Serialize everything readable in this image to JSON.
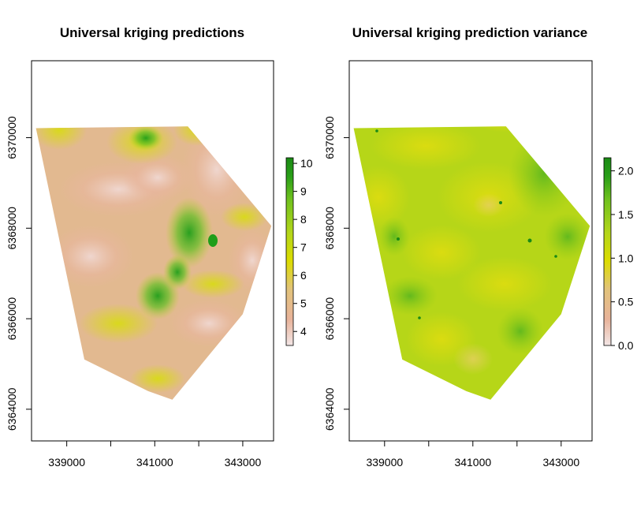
{
  "chart_data": [
    {
      "type": "heatmap",
      "title": "Universal kriging predictions",
      "xlabel": "",
      "ylabel": "",
      "xlim": [
        338200,
        343700
      ],
      "ylim": [
        6363300,
        6371700
      ],
      "x_ticks": [
        339000,
        341000,
        343000
      ],
      "x_ticks_minor": [
        340000,
        342000
      ],
      "x_tick_labels": [
        "339000",
        "341000",
        "343000"
      ],
      "y_ticks": [
        6364000,
        6366000,
        6368000,
        6370000
      ],
      "y_tick_labels": [
        "6364000",
        "6366000",
        "6368000",
        "6370000"
      ],
      "colorbar": {
        "range": [
          3.5,
          10.2
        ],
        "ticks": [
          4,
          5,
          6,
          7,
          8,
          9,
          10
        ],
        "tick_labels": [
          "4",
          "5",
          "6",
          "7",
          "8",
          "9",
          "10"
        ],
        "colors": [
          "#f3e6e6",
          "#e8b39a",
          "#e2c37a",
          "#dcdc00",
          "#b4d61a",
          "#6fc11e",
          "#2a9f18",
          "#1a8a15"
        ]
      },
      "polygon_x_y": [
        [
          338300,
          6370210
        ],
        [
          341750,
          6370250
        ],
        [
          343650,
          6368050
        ],
        [
          343000,
          6366100
        ],
        [
          341400,
          6364210
        ],
        [
          340850,
          6364400
        ],
        [
          339400,
          6365100
        ],
        [
          338300,
          6370210
        ]
      ],
      "grid": false,
      "legend": "right"
    },
    {
      "type": "heatmap",
      "title": "Universal kriging prediction variance",
      "xlabel": "",
      "ylabel": "",
      "xlim": [
        338200,
        343700
      ],
      "ylim": [
        6363300,
        6371700
      ],
      "x_ticks": [
        339000,
        341000,
        343000
      ],
      "x_ticks_minor": [
        340000,
        342000
      ],
      "x_tick_labels": [
        "339000",
        "341000",
        "343000"
      ],
      "y_ticks": [
        6364000,
        6366000,
        6368000,
        6370000
      ],
      "y_tick_labels": [
        "6364000",
        "6366000",
        "6368000",
        "6370000"
      ],
      "colorbar": {
        "range": [
          0,
          2.15
        ],
        "ticks": [
          0,
          0.5,
          1.0,
          1.5,
          2.0
        ],
        "tick_labels": [
          "0.0",
          "0.5",
          "1.0",
          "1.5",
          "2.0"
        ],
        "colors": [
          "#f3e6e6",
          "#e8b39a",
          "#e2c37a",
          "#dcdc00",
          "#b4d61a",
          "#6fc11e",
          "#2a9f18",
          "#1a8a15"
        ]
      },
      "polygon_x_y": [
        [
          338300,
          6370210
        ],
        [
          341750,
          6370250
        ],
        [
          343650,
          6368050
        ],
        [
          343000,
          6366100
        ],
        [
          341400,
          6364210
        ],
        [
          340850,
          6364400
        ],
        [
          339400,
          6365100
        ],
        [
          338300,
          6370210
        ]
      ],
      "grid": false,
      "legend": "right"
    }
  ]
}
